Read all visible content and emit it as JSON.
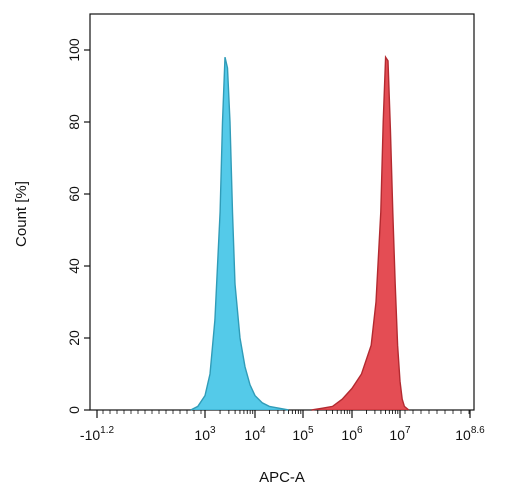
{
  "chart_data": {
    "type": "area",
    "title": "",
    "xlabel": "APC-A",
    "ylabel": "Count [%]",
    "x_scale": "biexponential-log",
    "ylim": [
      0,
      110
    ],
    "grid": false,
    "legend": "none",
    "x_ticks": [
      {
        "base": "-10",
        "exp": "1.2"
      },
      {
        "base": "10",
        "exp": "3"
      },
      {
        "base": "10",
        "exp": "4"
      },
      {
        "base": "10",
        "exp": "5"
      },
      {
        "base": "10",
        "exp": "6"
      },
      {
        "base": "10",
        "exp": "7"
      },
      {
        "base": "10",
        "exp": "8.6"
      }
    ],
    "y_ticks": [
      "0",
      "20",
      "40",
      "60",
      "80",
      "100"
    ],
    "series": [
      {
        "color": "#3cc3e6",
        "x": [
          400,
          630,
          1000,
          1260,
          1580,
          2000,
          2240,
          2510,
          2820,
          3160,
          3550,
          3980,
          5010,
          6310,
          7940,
          10000,
          14130,
          19950,
          31620,
          50120
        ],
        "values": [
          0,
          1,
          4,
          10,
          25,
          55,
          80,
          98,
          95,
          80,
          55,
          35,
          20,
          12,
          7,
          4,
          2,
          1,
          0.5,
          0
        ]
      },
      {
        "color": "#e0343c",
        "x": [
          150000,
          250000,
          400000,
          630000,
          1000000,
          1580000,
          2510000,
          3160000,
          3980000,
          4470000,
          5010000,
          5620000,
          6310000,
          7080000,
          7940000,
          8910000,
          10000000,
          11220000,
          12590000,
          15850000
        ],
        "values": [
          0,
          0.5,
          1,
          3,
          6,
          10,
          18,
          30,
          55,
          80,
          98,
          97,
          78,
          55,
          35,
          18,
          8,
          3,
          1,
          0
        ]
      }
    ]
  }
}
